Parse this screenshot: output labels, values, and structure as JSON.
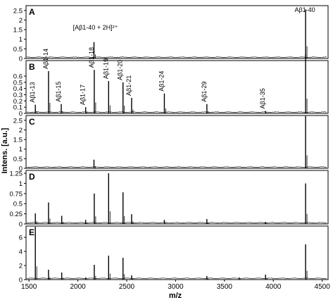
{
  "chart_data": [
    {
      "type": "line",
      "panel_letter": "A",
      "ylim": [
        0,
        2.75
      ],
      "yticks": [
        "0",
        "0.5",
        "1",
        "1.5",
        "2",
        "2.5"
      ],
      "peaks": [
        {
          "mz": 2165,
          "intensity": 0.85,
          "label": "[Aβ1-40 + 2H]²⁺"
        },
        {
          "mz": 4330,
          "intensity": 2.55,
          "label": "Aβ1-40"
        }
      ]
    },
    {
      "type": "line",
      "panel_letter": "B",
      "ylim": [
        0,
        0.85
      ],
      "yticks": [
        "0",
        "0.1",
        "0.2",
        "0.3",
        "0.4",
        "0.5",
        "0.6"
      ],
      "peaks": [
        {
          "mz": 1565,
          "intensity": 0.14,
          "label": "Aβ1-13"
        },
        {
          "mz": 1700,
          "intensity": 0.68,
          "label": "Aβ1-14"
        },
        {
          "mz": 1830,
          "intensity": 0.15,
          "label": "Aβ1-15"
        },
        {
          "mz": 2080,
          "intensity": 0.1,
          "label": "Aβ1-17"
        },
        {
          "mz": 2168,
          "intensity": 0.7,
          "label": "Aβ1-18"
        },
        {
          "mz": 2315,
          "intensity": 0.52,
          "label": "Aβ1-19"
        },
        {
          "mz": 2462,
          "intensity": 0.5,
          "label": "Aβ1-20"
        },
        {
          "mz": 2550,
          "intensity": 0.25,
          "label": "Aβ1-21"
        },
        {
          "mz": 2885,
          "intensity": 0.32,
          "label": "Aβ1-24"
        },
        {
          "mz": 3320,
          "intensity": 0.15,
          "label": "Aβ1-29"
        },
        {
          "mz": 3920,
          "intensity": 0.04,
          "label": "Aβ1-35"
        },
        {
          "mz": 4330,
          "intensity": 0.95,
          "label": ""
        }
      ]
    },
    {
      "type": "line",
      "panel_letter": "C",
      "ylim": [
        0,
        2.75
      ],
      "yticks": [
        "0",
        "0.5",
        "1",
        "1.5",
        "2",
        "2.5"
      ],
      "peaks": [
        {
          "mz": 2165,
          "intensity": 0.45,
          "label": ""
        },
        {
          "mz": 4330,
          "intensity": 2.72,
          "label": ""
        }
      ]
    },
    {
      "type": "line",
      "panel_letter": "D",
      "ylim": [
        0,
        1.32
      ],
      "yticks": [
        "0",
        "0.25",
        "0.5",
        "0.75",
        "1",
        "1.25"
      ],
      "peaks": [
        {
          "mz": 1565,
          "intensity": 0.26,
          "label": ""
        },
        {
          "mz": 1700,
          "intensity": 0.53,
          "label": ""
        },
        {
          "mz": 1835,
          "intensity": 0.2,
          "label": ""
        },
        {
          "mz": 2080,
          "intensity": 0.1,
          "label": ""
        },
        {
          "mz": 2168,
          "intensity": 0.75,
          "label": ""
        },
        {
          "mz": 2315,
          "intensity": 1.25,
          "label": ""
        },
        {
          "mz": 2462,
          "intensity": 0.78,
          "label": ""
        },
        {
          "mz": 2550,
          "intensity": 0.24,
          "label": ""
        },
        {
          "mz": 2885,
          "intensity": 0.1,
          "label": ""
        },
        {
          "mz": 3320,
          "intensity": 0.12,
          "label": ""
        },
        {
          "mz": 3920,
          "intensity": 0.05,
          "label": ""
        },
        {
          "mz": 4330,
          "intensity": 1.0,
          "label": ""
        }
      ]
    },
    {
      "type": "line",
      "panel_letter": "E",
      "ylim": [
        0,
        7.6
      ],
      "yticks": [
        "0",
        "2",
        "4",
        "6"
      ],
      "peaks": [
        {
          "mz": 1565,
          "intensity": 7.5,
          "label": ""
        },
        {
          "mz": 1700,
          "intensity": 1.4,
          "label": ""
        },
        {
          "mz": 1835,
          "intensity": 1.0,
          "label": ""
        },
        {
          "mz": 2080,
          "intensity": 0.3,
          "label": ""
        },
        {
          "mz": 2168,
          "intensity": 2.1,
          "label": ""
        },
        {
          "mz": 2315,
          "intensity": 3.4,
          "label": ""
        },
        {
          "mz": 2462,
          "intensity": 3.1,
          "label": ""
        },
        {
          "mz": 2550,
          "intensity": 0.6,
          "label": ""
        },
        {
          "mz": 3320,
          "intensity": 0.5,
          "label": ""
        },
        {
          "mz": 3650,
          "intensity": 0.3,
          "label": ""
        },
        {
          "mz": 3920,
          "intensity": 0.7,
          "label": ""
        },
        {
          "mz": 4330,
          "intensity": 5.0,
          "label": ""
        }
      ]
    }
  ],
  "shared_x_axis": {
    "xlabel": "m/z",
    "xlim": [
      1470,
      4560
    ],
    "xticks": [
      1500,
      2000,
      2500,
      3000,
      3500,
      4000,
      4500
    ]
  },
  "ylabel": "Intens. [a.u.]"
}
